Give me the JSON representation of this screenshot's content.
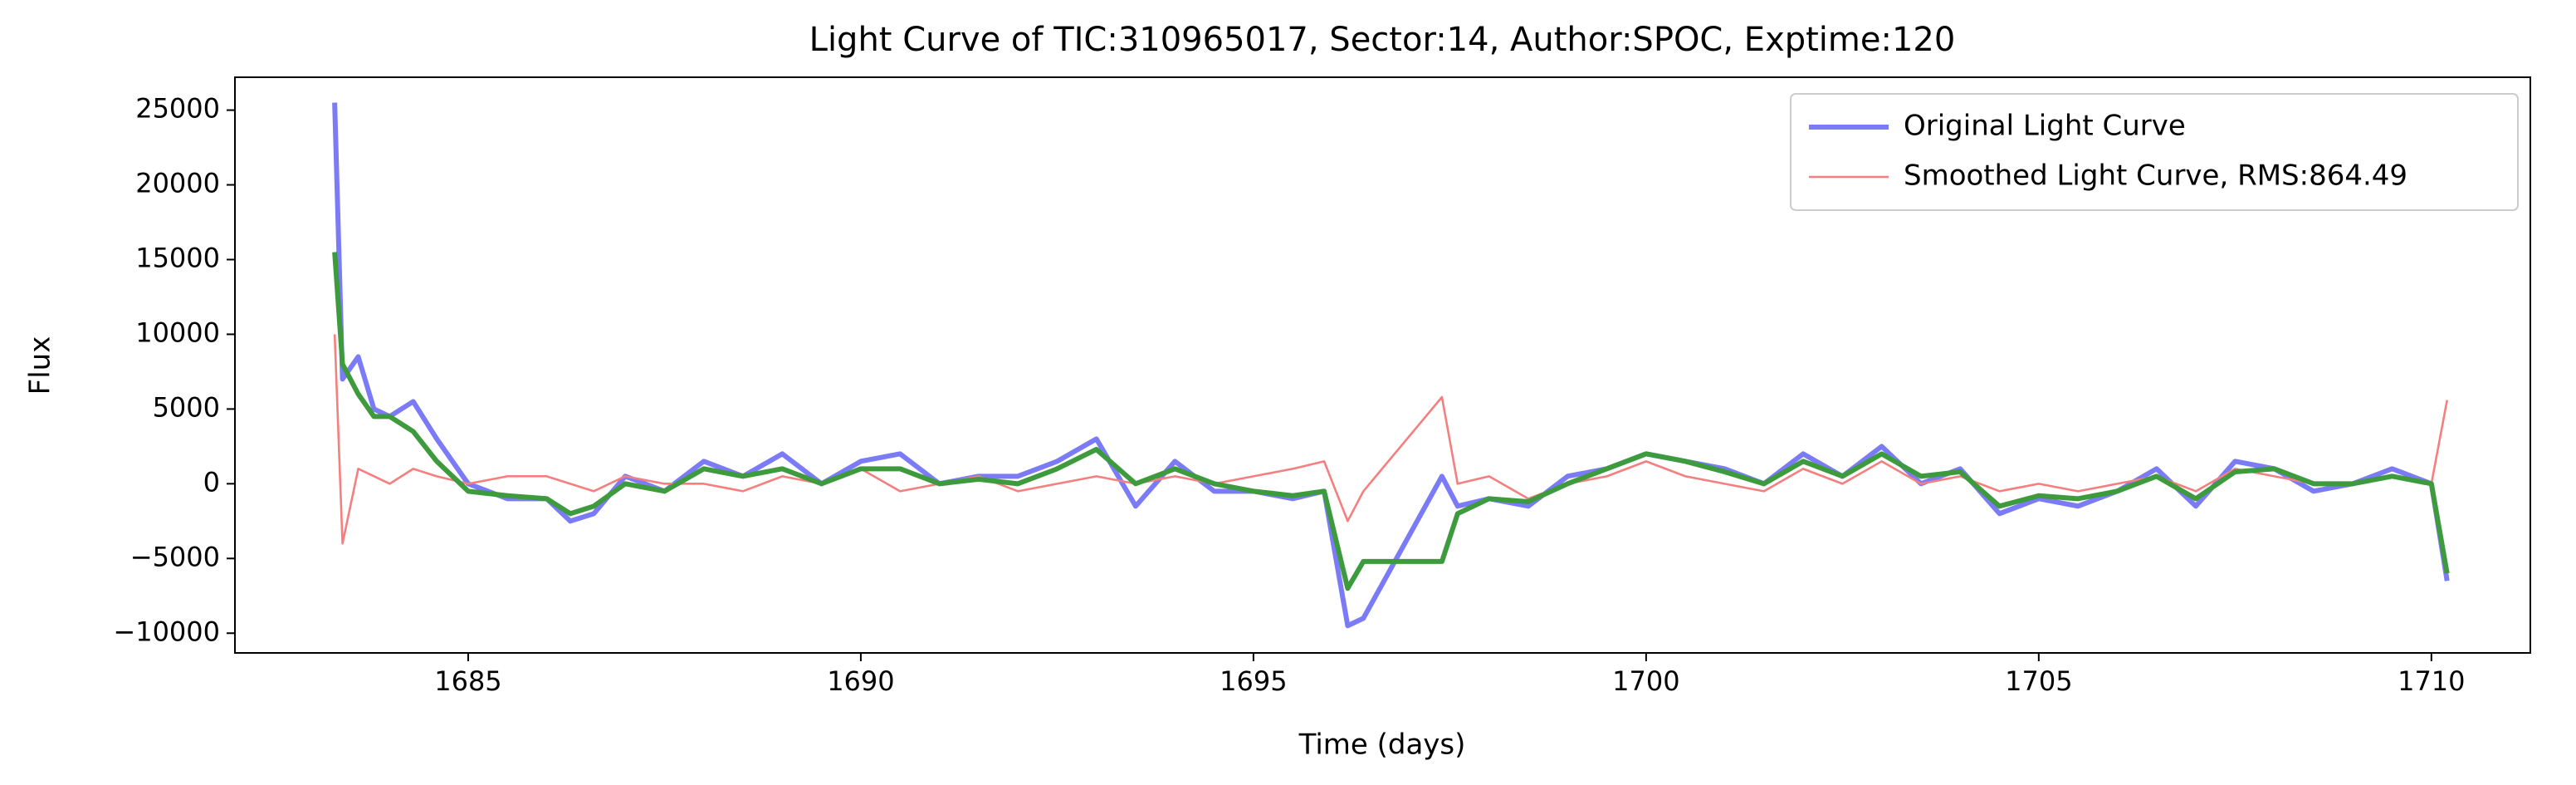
{
  "chart_data": {
    "type": "line",
    "title": "Light Curve of TIC:310965017, Sector:14, Author:SPOC, Exptime:120",
    "x_label": "Time (days)",
    "y_label": "Flux",
    "x": [
      1683.3,
      1683.4,
      1683.6,
      1683.8,
      1684.0,
      1684.3,
      1684.6,
      1685.0,
      1685.5,
      1686.0,
      1686.3,
      1686.6,
      1687.0,
      1687.5,
      1688.0,
      1688.5,
      1689.0,
      1689.5,
      1690.0,
      1690.5,
      1691.0,
      1691.5,
      1692.0,
      1692.5,
      1693.0,
      1693.5,
      1694.0,
      1694.5,
      1695.0,
      1695.5,
      1695.9,
      1696.2,
      1696.4,
      1697.4,
      1697.6,
      1698.0,
      1698.5,
      1699.0,
      1699.5,
      1700.0,
      1700.5,
      1701.0,
      1701.5,
      1702.0,
      1702.5,
      1703.0,
      1703.5,
      1704.0,
      1704.5,
      1705.0,
      1705.5,
      1706.0,
      1706.5,
      1707.0,
      1707.5,
      1708.0,
      1708.5,
      1709.0,
      1709.5,
      1710.0,
      1710.2
    ],
    "series": [
      {
        "name": "Original Light Curve",
        "color": "#7b7bf7",
        "values": [
          25500,
          7000,
          8500,
          5000,
          4500,
          5500,
          3000,
          0,
          -1000,
          -1000,
          -2500,
          -2000,
          500,
          -500,
          1500,
          500,
          2000,
          0,
          1500,
          2000,
          0,
          500,
          500,
          1500,
          3000,
          -1500,
          1500,
          -500,
          -500,
          -1000,
          -500,
          -9500,
          -9000,
          500,
          -1500,
          -1000,
          -1500,
          500,
          1000,
          2000,
          1500,
          1000,
          0,
          2000,
          500,
          2500,
          0,
          1000,
          -2000,
          -1000,
          -1500,
          -500,
          1000,
          -1500,
          1500,
          1000,
          -500,
          0,
          1000,
          0,
          -6500
        ]
      },
      {
        "name": "Smoothed Light Curve, RMS:864.49",
        "color": "#f57f7f",
        "values": [
          10000,
          -4000,
          1000,
          500,
          0,
          1000,
          500,
          0,
          500,
          500,
          0,
          -500,
          500,
          0,
          0,
          -500,
          500,
          0,
          1000,
          -500,
          0,
          500,
          -500,
          0,
          500,
          0,
          500,
          0,
          500,
          1000,
          1500,
          -2500,
          -500,
          5800,
          0,
          500,
          -1000,
          0,
          500,
          1500,
          500,
          0,
          -500,
          1000,
          0,
          1500,
          0,
          500,
          -500,
          0,
          -500,
          0,
          500,
          -500,
          1000,
          500,
          0,
          0,
          500,
          0,
          5600
        ]
      },
      {
        "color": "#3d9b3d",
        "values": [
          15500,
          8000,
          6000,
          4500,
          4500,
          3500,
          1500,
          -500,
          -800,
          -1000,
          -2000,
          -1500,
          0,
          -500,
          1000,
          500,
          1000,
          0,
          1000,
          1000,
          0,
          300,
          0,
          1000,
          2300,
          0,
          1000,
          0,
          -500,
          -800,
          -500,
          -7000,
          -5200,
          -5200,
          -2000,
          -1000,
          -1200,
          0,
          1000,
          2000,
          1500,
          800,
          0,
          1500,
          500,
          2000,
          500,
          800,
          -1500,
          -800,
          -1000,
          -500,
          500,
          -1000,
          800,
          1000,
          0,
          0,
          500,
          0,
          -6000
        ]
      }
    ],
    "xlim": [
      1682.03,
      1711.26
    ],
    "ylim": [
      -11320,
      27200
    ],
    "xticks": [
      1685,
      1690,
      1695,
      1700,
      1705,
      1710
    ],
    "yticks": [
      {
        "value": -10000,
        "label": "−10000"
      },
      {
        "value": -5000,
        "label": "−5000"
      },
      0,
      5000,
      10000,
      15000,
      20000,
      25000
    ],
    "grid": false,
    "legend": "upper right"
  }
}
